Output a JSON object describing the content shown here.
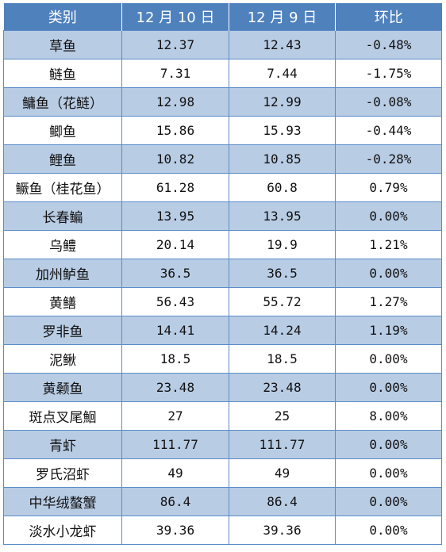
{
  "table": {
    "headers": [
      "类别",
      "12 月 10 日",
      "12 月 9 日",
      "环比"
    ],
    "rows": [
      {
        "name": "草鱼",
        "d10": "12.37",
        "d9": "12.43",
        "change": "-0.48%"
      },
      {
        "name": "鲢鱼",
        "d10": "7.31",
        "d9": "7.44",
        "change": "-1.75%"
      },
      {
        "name": "鳙鱼（花鲢）",
        "d10": "12.98",
        "d9": "12.99",
        "change": "-0.08%"
      },
      {
        "name": "鲫鱼",
        "d10": "15.86",
        "d9": "15.93",
        "change": "-0.44%"
      },
      {
        "name": "鲤鱼",
        "d10": "10.82",
        "d9": "10.85",
        "change": "-0.28%"
      },
      {
        "name": "鳜鱼（桂花鱼）",
        "d10": "61.28",
        "d9": "60.8",
        "change": "0.79%"
      },
      {
        "name": "长春鳊",
        "d10": "13.95",
        "d9": "13.95",
        "change": "0.00%"
      },
      {
        "name": "乌鳢",
        "d10": "20.14",
        "d9": "19.9",
        "change": "1.21%"
      },
      {
        "name": "加州鲈鱼",
        "d10": "36.5",
        "d9": "36.5",
        "change": "0.00%"
      },
      {
        "name": "黄鳝",
        "d10": "56.43",
        "d9": "55.72",
        "change": "1.27%"
      },
      {
        "name": "罗非鱼",
        "d10": "14.41",
        "d9": "14.24",
        "change": "1.19%"
      },
      {
        "name": "泥鳅",
        "d10": "18.5",
        "d9": "18.5",
        "change": "0.00%"
      },
      {
        "name": "黄颡鱼",
        "d10": "23.48",
        "d9": "23.48",
        "change": "0.00%"
      },
      {
        "name": "斑点叉尾鮰",
        "d10": "27",
        "d9": "25",
        "change": "8.00%"
      },
      {
        "name": "青虾",
        "d10": "111.77",
        "d9": "111.77",
        "change": "0.00%"
      },
      {
        "name": "罗氏沼虾",
        "d10": "49",
        "d9": "49",
        "change": "0.00%"
      },
      {
        "name": "中华绒螯蟹",
        "d10": "86.4",
        "d9": "86.4",
        "change": "0.00%"
      },
      {
        "name": "淡水小龙虾",
        "d10": "39.36",
        "d9": "39.36",
        "change": "0.00%"
      }
    ]
  }
}
